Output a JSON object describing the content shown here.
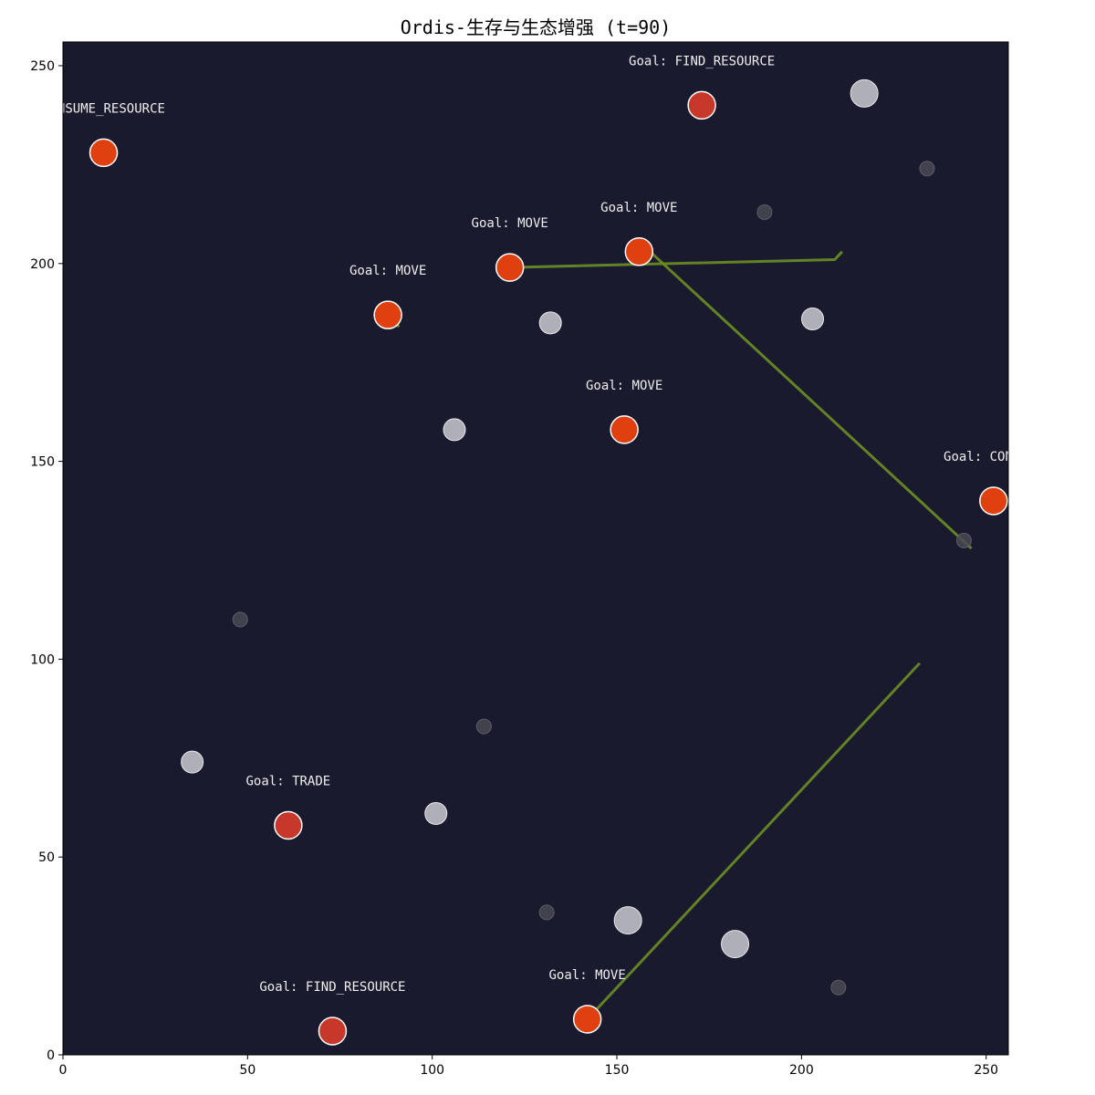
{
  "chart_data": {
    "type": "scatter",
    "title": "Ordis-生存与生态增强 (t=90)",
    "xlabel": "",
    "ylabel": "",
    "xlim": [
      0,
      256
    ],
    "ylim": [
      0,
      256
    ],
    "x_ticks": [
      0,
      50,
      100,
      150,
      200,
      250
    ],
    "y_ticks": [
      0,
      50,
      100,
      150,
      200,
      250
    ],
    "grid": false,
    "colors": {
      "background": "#1a1a2e",
      "agent_fill": "#e04010",
      "agent_fill_alt": "#c8382a",
      "agent_edge": "#ffffff",
      "resource_light": "#c0c0c8",
      "resource_dark": "#4a4a55",
      "path": "#6b8e23",
      "label": "#eeeeee"
    },
    "agents": [
      {
        "x": 11,
        "y": 228,
        "label": "CONSUME_RESOURCE",
        "alt": false
      },
      {
        "x": 173,
        "y": 240,
        "label": "Goal: FIND_RESOURCE",
        "alt": true
      },
      {
        "x": 121,
        "y": 199,
        "label": "Goal: MOVE",
        "alt": false
      },
      {
        "x": 156,
        "y": 203,
        "label": "Goal: MOVE",
        "alt": false
      },
      {
        "x": 88,
        "y": 187,
        "label": "Goal: MOVE",
        "alt": false
      },
      {
        "x": 152,
        "y": 158,
        "label": "Goal: MOVE",
        "alt": false
      },
      {
        "x": 252,
        "y": 140,
        "label": "Goal: CONSUME",
        "alt": false
      },
      {
        "x": 61,
        "y": 58,
        "label": "Goal: TRADE",
        "alt": true
      },
      {
        "x": 73,
        "y": 6,
        "label": "Goal: FIND_RESOURCE",
        "alt": true
      },
      {
        "x": 142,
        "y": 9,
        "label": "Goal: MOVE",
        "alt": false
      }
    ],
    "resources": [
      {
        "x": 217,
        "y": 243,
        "size": 3,
        "shade": "light"
      },
      {
        "x": 234,
        "y": 224,
        "size": 1,
        "shade": "dark"
      },
      {
        "x": 190,
        "y": 213,
        "size": 1,
        "shade": "dark"
      },
      {
        "x": 132,
        "y": 185,
        "size": 2,
        "shade": "light"
      },
      {
        "x": 203,
        "y": 186,
        "size": 2,
        "shade": "light"
      },
      {
        "x": 106,
        "y": 158,
        "size": 2,
        "shade": "light"
      },
      {
        "x": 244,
        "y": 130,
        "size": 1,
        "shade": "dark"
      },
      {
        "x": 48,
        "y": 110,
        "size": 1,
        "shade": "dark"
      },
      {
        "x": 114,
        "y": 83,
        "size": 1,
        "shade": "dark"
      },
      {
        "x": 35,
        "y": 74,
        "size": 2,
        "shade": "light"
      },
      {
        "x": 101,
        "y": 61,
        "size": 2,
        "shade": "light"
      },
      {
        "x": 131,
        "y": 36,
        "size": 1,
        "shade": "dark"
      },
      {
        "x": 153,
        "y": 34,
        "size": 3,
        "shade": "light"
      },
      {
        "x": 182,
        "y": 28,
        "size": 3,
        "shade": "light"
      },
      {
        "x": 210,
        "y": 17,
        "size": 1,
        "shade": "dark"
      }
    ],
    "paths": [
      {
        "points": [
          [
            121,
            199
          ],
          [
            209,
            201
          ],
          [
            211,
            203
          ]
        ]
      },
      {
        "points": [
          [
            156,
            203
          ],
          [
            159,
            203
          ],
          [
            246,
            128
          ]
        ]
      },
      {
        "points": [
          [
            88,
            187
          ],
          [
            91,
            184
          ]
        ]
      },
      {
        "points": [
          [
            150,
            158
          ],
          [
            153,
            158
          ]
        ]
      },
      {
        "points": [
          [
            142,
            9
          ],
          [
            232,
            99
          ]
        ]
      }
    ]
  }
}
